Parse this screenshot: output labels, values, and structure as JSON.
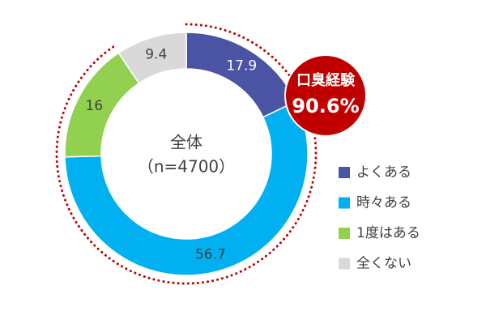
{
  "chart_data": {
    "type": "donut",
    "center_text": [
      "全体",
      "（n=4700）"
    ],
    "categories": [
      "よくある",
      "時々ある",
      "1度はある",
      "全くない"
    ],
    "values": [
      17.9,
      56.7,
      16.0,
      9.4
    ],
    "colors": [
      "#4b54a4",
      "#00b0f0",
      "#92d050",
      "#d9d9d9"
    ],
    "annotation": {
      "title": "口臭経験",
      "value": 90.6,
      "label": "90.6%",
      "color": "#c00000"
    }
  }
}
